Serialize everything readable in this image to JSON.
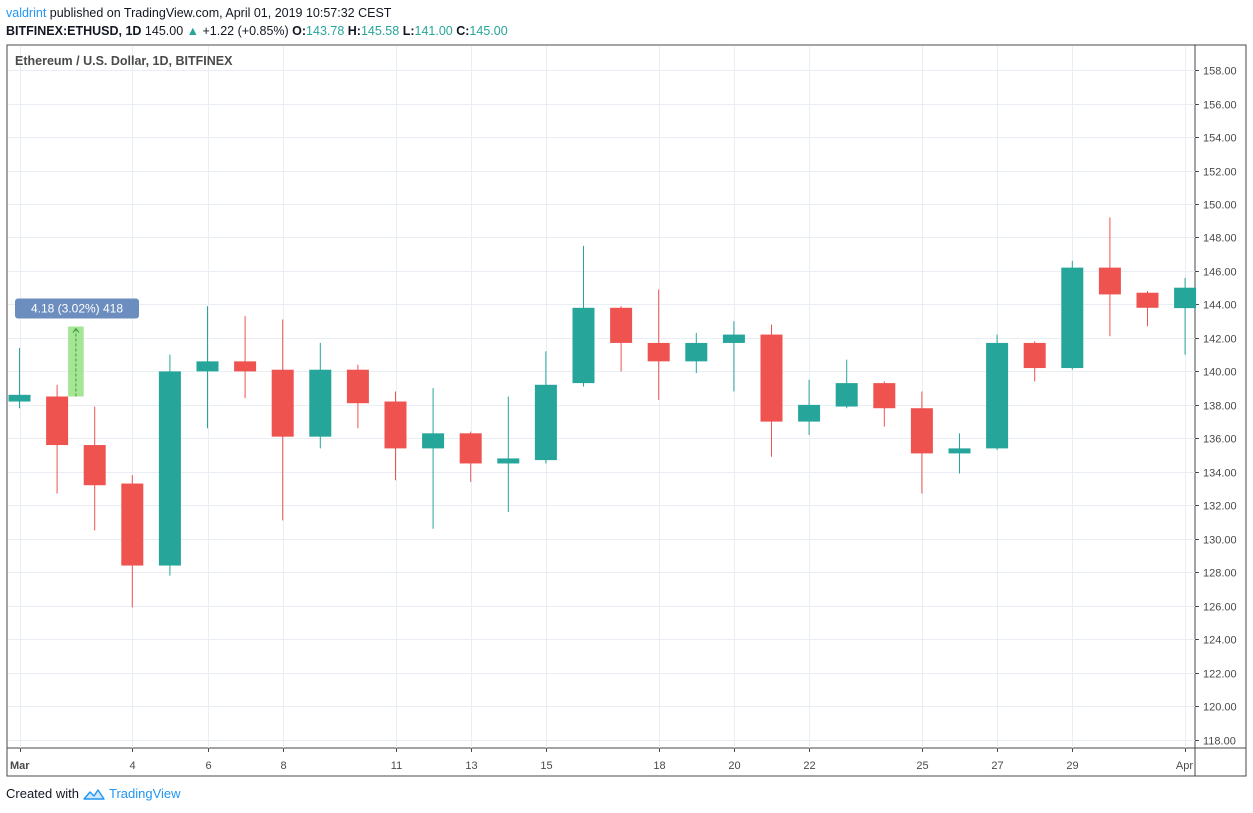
{
  "header": {
    "author": "valdrint",
    "published_text": "published on TradingView.com, April 01, 2019 10:57:32 CEST",
    "symbol": "BITFINEX:ETHUSD, 1D",
    "last_price": "145.00",
    "change": "+1.22 (+0.85%)",
    "o_label": "O:",
    "o_value": "143.78",
    "h_label": "H:",
    "h_value": "145.58",
    "l_label": "L:",
    "l_value": "141.00",
    "c_label": "C:",
    "c_value": "145.00"
  },
  "footer": {
    "created_with": "Created with",
    "brand": "TradingView"
  },
  "colors": {
    "up": "#26a69a",
    "down": "#ef5350",
    "grid": "#e8eef4",
    "axis": "#4a4a4a",
    "measure_fill": "#8fe07a",
    "measure_label": "#6c8ebf"
  },
  "chart_data": {
    "type": "candlestick",
    "title": "Ethereum / U.S. Dollar, 1D, BITFINEX",
    "ylim": [
      117.5,
      159.5
    ],
    "y_ticks": [
      118,
      120,
      122,
      124,
      126,
      128,
      130,
      132,
      134,
      136,
      138,
      140,
      142,
      144,
      146,
      148,
      150,
      152,
      154,
      156,
      158
    ],
    "x_ticks": [
      {
        "index": 0,
        "label": "Mar"
      },
      {
        "index": 3,
        "label": "4"
      },
      {
        "index": 5,
        "label": "6"
      },
      {
        "index": 7,
        "label": "8"
      },
      {
        "index": 10,
        "label": "11"
      },
      {
        "index": 12,
        "label": "13"
      },
      {
        "index": 14,
        "label": "15"
      },
      {
        "index": 17,
        "label": "18"
      },
      {
        "index": 19,
        "label": "20"
      },
      {
        "index": 21,
        "label": "22"
      },
      {
        "index": 24,
        "label": "25"
      },
      {
        "index": 26,
        "label": "27"
      },
      {
        "index": 28,
        "label": "29"
      },
      {
        "index": 31,
        "label": "Apr"
      }
    ],
    "candles": [
      {
        "date": "2019-03-01",
        "o": 138.2,
        "h": 141.4,
        "l": 137.8,
        "c": 138.6
      },
      {
        "date": "2019-03-02",
        "o": 138.5,
        "h": 139.2,
        "l": 132.7,
        "c": 135.6
      },
      {
        "date": "2019-03-03",
        "o": 135.6,
        "h": 137.9,
        "l": 130.5,
        "c": 133.2
      },
      {
        "date": "2019-03-04",
        "o": 133.3,
        "h": 133.8,
        "l": 125.9,
        "c": 128.4
      },
      {
        "date": "2019-03-05",
        "o": 128.4,
        "h": 141.0,
        "l": 127.8,
        "c": 140.0
      },
      {
        "date": "2019-03-06",
        "o": 140.0,
        "h": 143.9,
        "l": 136.6,
        "c": 140.6
      },
      {
        "date": "2019-03-07",
        "o": 140.6,
        "h": 143.3,
        "l": 138.4,
        "c": 140.0
      },
      {
        "date": "2019-03-08",
        "o": 140.1,
        "h": 143.1,
        "l": 131.1,
        "c": 136.1
      },
      {
        "date": "2019-03-09",
        "o": 136.1,
        "h": 141.7,
        "l": 135.4,
        "c": 140.1
      },
      {
        "date": "2019-03-10",
        "o": 140.1,
        "h": 140.4,
        "l": 136.6,
        "c": 138.1
      },
      {
        "date": "2019-03-11",
        "o": 138.2,
        "h": 138.8,
        "l": 133.5,
        "c": 135.4
      },
      {
        "date": "2019-03-12",
        "o": 135.4,
        "h": 139.0,
        "l": 130.6,
        "c": 136.3
      },
      {
        "date": "2019-03-13",
        "o": 136.3,
        "h": 136.4,
        "l": 133.4,
        "c": 134.5
      },
      {
        "date": "2019-03-14",
        "o": 134.5,
        "h": 138.5,
        "l": 131.6,
        "c": 134.8
      },
      {
        "date": "2019-03-15",
        "o": 134.7,
        "h": 141.2,
        "l": 134.5,
        "c": 139.2
      },
      {
        "date": "2019-03-16",
        "o": 139.3,
        "h": 147.5,
        "l": 139.1,
        "c": 143.8
      },
      {
        "date": "2019-03-17",
        "o": 143.8,
        "h": 143.9,
        "l": 140.0,
        "c": 141.7
      },
      {
        "date": "2019-03-18",
        "o": 141.7,
        "h": 144.9,
        "l": 138.3,
        "c": 140.6
      },
      {
        "date": "2019-03-19",
        "o": 140.6,
        "h": 142.3,
        "l": 139.9,
        "c": 141.7
      },
      {
        "date": "2019-03-20",
        "o": 141.7,
        "h": 143.0,
        "l": 138.8,
        "c": 142.2
      },
      {
        "date": "2019-03-21",
        "o": 142.2,
        "h": 142.8,
        "l": 134.9,
        "c": 137.0
      },
      {
        "date": "2019-03-22",
        "o": 137.0,
        "h": 139.5,
        "l": 136.2,
        "c": 138.0
      },
      {
        "date": "2019-03-23",
        "o": 137.9,
        "h": 140.7,
        "l": 137.8,
        "c": 139.3
      },
      {
        "date": "2019-03-24",
        "o": 139.3,
        "h": 139.4,
        "l": 136.7,
        "c": 137.8
      },
      {
        "date": "2019-03-25",
        "o": 137.8,
        "h": 138.8,
        "l": 132.7,
        "c": 135.1
      },
      {
        "date": "2019-03-26",
        "o": 135.1,
        "h": 136.3,
        "l": 133.9,
        "c": 135.4
      },
      {
        "date": "2019-03-27",
        "o": 135.4,
        "h": 142.2,
        "l": 135.3,
        "c": 141.7
      },
      {
        "date": "2019-03-28",
        "o": 141.7,
        "h": 141.8,
        "l": 139.4,
        "c": 140.2
      },
      {
        "date": "2019-03-29",
        "o": 140.2,
        "h": 146.6,
        "l": 140.1,
        "c": 146.2
      },
      {
        "date": "2019-03-30",
        "o": 146.2,
        "h": 149.2,
        "l": 142.1,
        "c": 144.6
      },
      {
        "date": "2019-03-31",
        "o": 144.7,
        "h": 144.8,
        "l": 142.7,
        "c": 143.8
      },
      {
        "date": "2019-04-01",
        "o": 143.78,
        "h": 145.58,
        "l": 141.0,
        "c": 145.0
      }
    ],
    "measure": {
      "start_index": 1,
      "end_index": 2,
      "from_price": 138.5,
      "to_price": 142.68,
      "label": "4.18 (3.02%) 418"
    }
  }
}
